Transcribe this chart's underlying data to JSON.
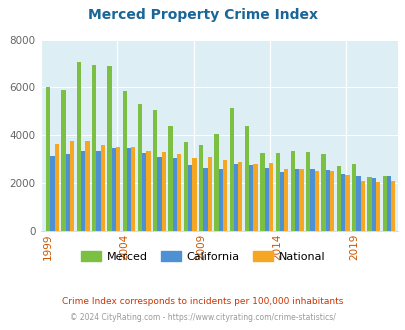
{
  "title": "Merced Property Crime Index",
  "years": [
    1999,
    2000,
    2001,
    2002,
    2003,
    2004,
    2005,
    2006,
    2007,
    2008,
    2009,
    2010,
    2011,
    2012,
    2013,
    2014,
    2015,
    2016,
    2017,
    2018,
    2019,
    2020,
    2021
  ],
  "merced": [
    6000,
    5900,
    7050,
    6950,
    6900,
    5850,
    5300,
    5050,
    4400,
    3700,
    3600,
    4050,
    5150,
    4400,
    3250,
    3250,
    3350,
    3300,
    3200,
    2700,
    2800,
    2250,
    2300
  ],
  "california": [
    3150,
    3200,
    3350,
    3350,
    3450,
    3450,
    3250,
    3100,
    3050,
    2750,
    2650,
    2600,
    2800,
    2750,
    2650,
    2450,
    2600,
    2600,
    2550,
    2400,
    2300,
    2200,
    2300
  ],
  "national": [
    3650,
    3750,
    3750,
    3600,
    3500,
    3500,
    3350,
    3300,
    3200,
    3050,
    3100,
    2950,
    2900,
    2800,
    2850,
    2600,
    2600,
    2500,
    2500,
    2350,
    2100,
    2050,
    2100
  ],
  "merced_color": "#7bc043",
  "california_color": "#4d90d4",
  "national_color": "#f5a623",
  "bg_color": "#ddeef4",
  "ylim": [
    0,
    8000
  ],
  "yticks": [
    0,
    2000,
    4000,
    6000,
    8000
  ],
  "xtick_labels": [
    "1999",
    "2004",
    "2009",
    "2014",
    "2019"
  ],
  "xtick_positions": [
    1999,
    2004,
    2009,
    2014,
    2019
  ],
  "subtitle": "Crime Index corresponds to incidents per 100,000 inhabitants",
  "footer": "© 2024 CityRating.com - https://www.cityrating.com/crime-statistics/",
  "title_color": "#1a6699",
  "subtitle_color": "#cc3300",
  "footer_color": "#999999"
}
